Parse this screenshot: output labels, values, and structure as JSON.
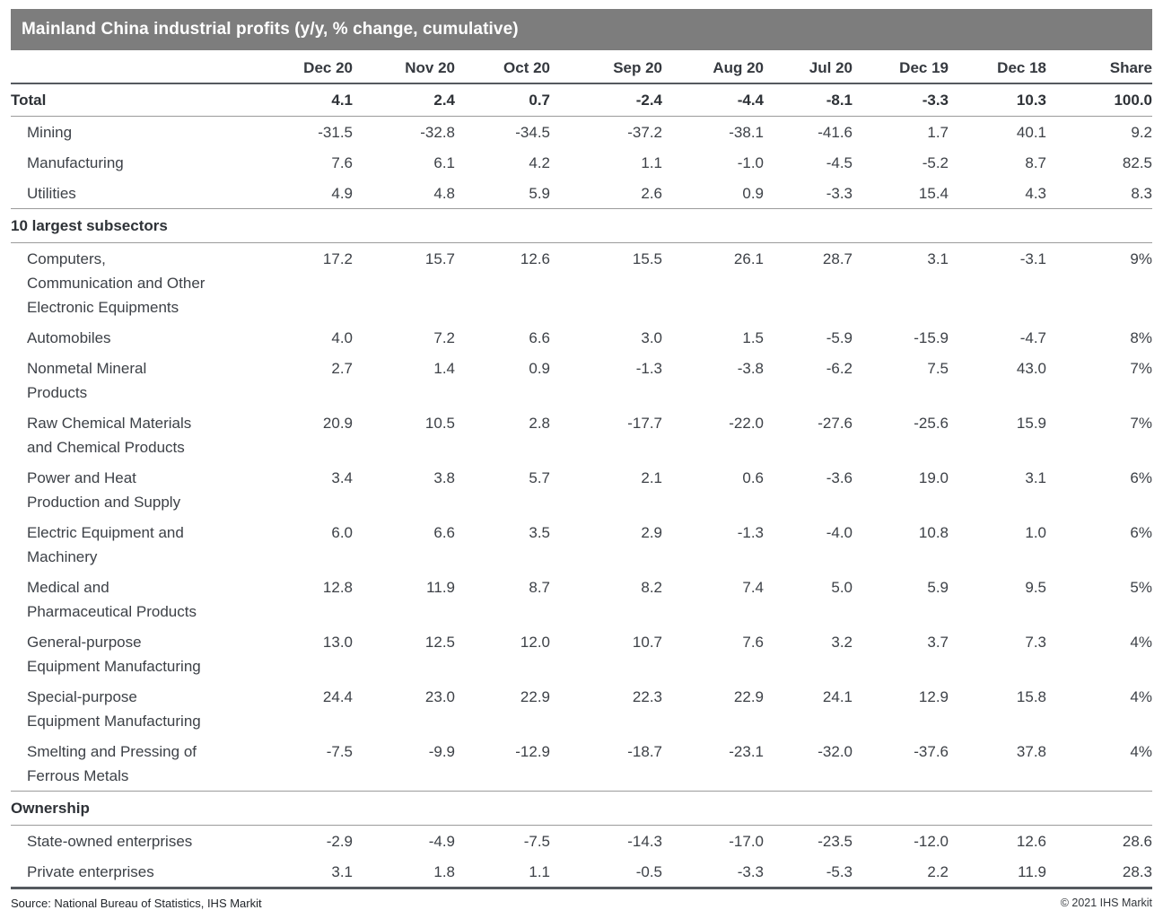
{
  "title": "Mainland China industrial profits (y/y, % change, cumulative)",
  "colors": {
    "title_bar": "#7d7d7d",
    "title_text": "#ffffff",
    "text": "#3d4147",
    "rule_dark": "#555a5f",
    "rule_light": "#9b9b9b"
  },
  "footer": {
    "source": "Source: National Bureau of Statistics, IHS Markit",
    "copyright": "© 2021 IHS Markit"
  },
  "chart_data": {
    "type": "table",
    "title": "Mainland China industrial profits (y/y, % change, cumulative)",
    "columns": [
      "Dec 20",
      "Nov 20",
      "Oct 20",
      "Sep 20",
      "Aug 20",
      "Jul 20",
      "Dec 19",
      "Dec 18",
      "Share"
    ],
    "rows": [
      {
        "kind": "total",
        "label_lines": [
          "Total"
        ],
        "values": [
          "4.1",
          "2.4",
          "0.7",
          "-2.4",
          "-4.4",
          "-8.1",
          "-3.3",
          "10.3",
          "100.0"
        ]
      },
      {
        "kind": "sector",
        "label_lines": [
          "Mining"
        ],
        "values": [
          "-31.5",
          "-32.8",
          "-34.5",
          "-37.2",
          "-38.1",
          "-41.6",
          "1.7",
          "40.1",
          "9.2"
        ]
      },
      {
        "kind": "sector",
        "label_lines": [
          "Manufacturing"
        ],
        "values": [
          "7.6",
          "6.1",
          "4.2",
          "1.1",
          "-1.0",
          "-4.5",
          "-5.2",
          "8.7",
          "82.5"
        ]
      },
      {
        "kind": "sector",
        "label_lines": [
          "Utilities"
        ],
        "values": [
          "4.9",
          "4.8",
          "5.9",
          "2.6",
          "0.9",
          "-3.3",
          "15.4",
          "4.3",
          "8.3"
        ]
      },
      {
        "kind": "section",
        "label_lines": [
          "10 largest subsectors"
        ],
        "values": []
      },
      {
        "kind": "subsector",
        "label_lines": [
          "Computers,",
          "Communication and Other",
          "Electronic Equipments"
        ],
        "values": [
          "17.2",
          "15.7",
          "12.6",
          "15.5",
          "26.1",
          "28.7",
          "3.1",
          "-3.1",
          "9%"
        ]
      },
      {
        "kind": "subsector",
        "label_lines": [
          "Automobiles"
        ],
        "values": [
          "4.0",
          "7.2",
          "6.6",
          "3.0",
          "1.5",
          "-5.9",
          "-15.9",
          "-4.7",
          "8%"
        ]
      },
      {
        "kind": "subsector",
        "label_lines": [
          "Nonmetal Mineral",
          "Products"
        ],
        "values": [
          "2.7",
          "1.4",
          "0.9",
          "-1.3",
          "-3.8",
          "-6.2",
          "7.5",
          "43.0",
          "7%"
        ]
      },
      {
        "kind": "subsector",
        "label_lines": [
          "Raw Chemical Materials",
          "and Chemical Products"
        ],
        "values": [
          "20.9",
          "10.5",
          "2.8",
          "-17.7",
          "-22.0",
          "-27.6",
          "-25.6",
          "15.9",
          "7%"
        ]
      },
      {
        "kind": "subsector",
        "label_lines": [
          "Power and Heat",
          "Production and Supply"
        ],
        "values": [
          "3.4",
          "3.8",
          "5.7",
          "2.1",
          "0.6",
          "-3.6",
          "19.0",
          "3.1",
          "6%"
        ]
      },
      {
        "kind": "subsector",
        "label_lines": [
          "Electric Equipment and",
          "Machinery"
        ],
        "values": [
          "6.0",
          "6.6",
          "3.5",
          "2.9",
          "-1.3",
          "-4.0",
          "10.8",
          "1.0",
          "6%"
        ]
      },
      {
        "kind": "subsector",
        "label_lines": [
          "Medical and",
          "Pharmaceutical Products"
        ],
        "values": [
          "12.8",
          "11.9",
          "8.7",
          "8.2",
          "7.4",
          "5.0",
          "5.9",
          "9.5",
          "5%"
        ]
      },
      {
        "kind": "subsector",
        "label_lines": [
          "General-purpose",
          "Equipment Manufacturing"
        ],
        "values": [
          "13.0",
          "12.5",
          "12.0",
          "10.7",
          "7.6",
          "3.2",
          "3.7",
          "7.3",
          "4%"
        ]
      },
      {
        "kind": "subsector",
        "label_lines": [
          "Special-purpose",
          "Equipment Manufacturing"
        ],
        "values": [
          "24.4",
          "23.0",
          "22.9",
          "22.3",
          "22.9",
          "24.1",
          "12.9",
          "15.8",
          "4%"
        ]
      },
      {
        "kind": "subsector",
        "label_lines": [
          "Smelting and Pressing of",
          "Ferrous Metals"
        ],
        "values": [
          "-7.5",
          "-9.9",
          "-12.9",
          "-18.7",
          "-23.1",
          "-32.0",
          "-37.6",
          "37.8",
          "4%"
        ]
      },
      {
        "kind": "section",
        "label_lines": [
          "Ownership"
        ],
        "values": []
      },
      {
        "kind": "ownership",
        "label_lines": [
          "State-owned enterprises"
        ],
        "values": [
          "-2.9",
          "-4.9",
          "-7.5",
          "-14.3",
          "-17.0",
          "-23.5",
          "-12.0",
          "12.6",
          "28.6"
        ]
      },
      {
        "kind": "ownership",
        "label_lines": [
          "Private enterprises"
        ],
        "values": [
          "3.1",
          "1.8",
          "1.1",
          "-0.5",
          "-3.3",
          "-5.3",
          "2.2",
          "11.9",
          "28.3"
        ]
      }
    ]
  }
}
